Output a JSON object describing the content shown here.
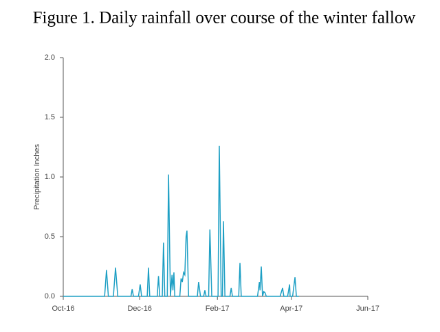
{
  "chart_data": {
    "type": "line",
    "title": "Figure 1. Daily rainfall over course of the winter fallow",
    "y_label": "Precipitation Inches",
    "xlim": [
      0,
      243
    ],
    "xticks": [
      {
        "value": 0,
        "label": "Oct-16"
      },
      {
        "value": 61,
        "label": "Dec-16"
      },
      {
        "value": 123,
        "label": "Feb-17"
      },
      {
        "value": 182,
        "label": "Apr-17"
      },
      {
        "value": 243,
        "label": "Jun-17"
      }
    ],
    "ylim": [
      0,
      2
    ],
    "yticks": [
      {
        "value": 0,
        "label": "0.0"
      },
      0.5,
      {
        "value": 1,
        "label": "1.0"
      },
      1.5,
      {
        "value": 2,
        "label": "2.0"
      }
    ],
    "series": [
      {
        "color": "#1d9fc4",
        "x": [
          0,
          33,
          34.5,
          36,
          40,
          41.7,
          43.5,
          54,
          55,
          56,
          60,
          61.4,
          62.5,
          67,
          68,
          69,
          75,
          76,
          77,
          79,
          80,
          81,
          83,
          84,
          85.5,
          86.8,
          87.5,
          88.3,
          89,
          93,
          94,
          95,
          96,
          97,
          98,
          98.7,
          100,
          107,
          108,
          109.5,
          112,
          113,
          114,
          116,
          117,
          118.5,
          123.5,
          124.5,
          126,
          127,
          127.8,
          129,
          133,
          134,
          135,
          140,
          141,
          142,
          155,
          156.5,
          157,
          158,
          159,
          160,
          161,
          162,
          173,
          175,
          176,
          179,
          180.6,
          181,
          183,
          184.9,
          186,
          188
        ],
        "values": [
          0,
          0,
          0.22,
          0,
          0,
          0.24,
          0,
          0,
          0.06,
          0,
          0,
          0.1,
          0,
          0,
          0.24,
          0,
          0,
          0.17,
          0,
          0,
          0.45,
          0,
          0,
          1.02,
          0,
          0.18,
          0.05,
          0.2,
          0,
          0,
          0.15,
          0.12,
          0.2,
          0.18,
          0.5,
          0.55,
          0,
          0,
          0.12,
          0,
          0,
          0.05,
          0,
          0,
          0.56,
          0,
          0,
          1.26,
          0,
          0,
          0.63,
          0,
          0,
          0.07,
          0,
          0,
          0.28,
          0,
          0,
          0.12,
          0.05,
          0.25,
          0,
          0.04,
          0.03,
          0,
          0,
          0.07,
          0,
          0,
          0.1,
          0,
          0,
          0.16,
          0,
          0
        ]
      }
    ]
  }
}
